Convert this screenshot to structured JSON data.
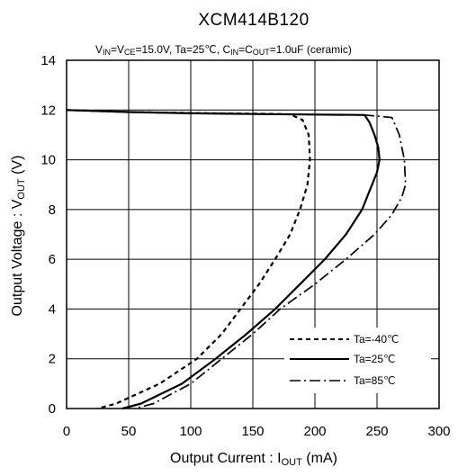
{
  "chart_data": {
    "type": "line",
    "title": "XCM414B120",
    "subtitle": {
      "vin": "V",
      "vin_sub": "IN",
      "eq1": "=V",
      "vce_sub": "CE",
      "mid": "=15.0V, Ta=25℃, C",
      "cin_sub": "IN",
      "eq2": "=C",
      "cout_sub": "OUT",
      "tail": "=1.0uF (ceramic)"
    },
    "xlabel": {
      "prefix": "Output  Current : I",
      "sub": "OUT",
      "suffix": "  (mA)"
    },
    "ylabel": {
      "prefix": "Output  Voltage : V",
      "sub": "OUT",
      "suffix": "  (V)"
    },
    "xlim": [
      0,
      300
    ],
    "ylim": [
      0,
      14
    ],
    "xticks": [
      "0",
      "50",
      "100",
      "150",
      "200",
      "250",
      "300"
    ],
    "yticks": [
      "0",
      "2",
      "4",
      "6",
      "8",
      "10",
      "12",
      "14"
    ],
    "grid": true,
    "legend_position": "bottom-right",
    "series": [
      {
        "name": "Ta=-40℃",
        "style": "dashed",
        "color": "#000000",
        "points": [
          [
            0,
            12.0
          ],
          [
            50,
            11.92
          ],
          [
            100,
            11.88
          ],
          [
            150,
            11.85
          ],
          [
            180,
            11.83
          ],
          [
            190,
            11.6
          ],
          [
            195,
            11.0
          ],
          [
            196,
            10.0
          ],
          [
            194,
            9.0
          ],
          [
            188,
            8.0
          ],
          [
            180,
            7.0
          ],
          [
            168,
            6.0
          ],
          [
            155,
            5.0
          ],
          [
            140,
            4.0
          ],
          [
            125,
            3.0
          ],
          [
            105,
            2.0
          ],
          [
            75,
            1.0
          ],
          [
            40,
            0.2
          ],
          [
            25,
            0
          ]
        ]
      },
      {
        "name": "Ta=25℃",
        "style": "solid",
        "color": "#000000",
        "points": [
          [
            0,
            12.0
          ],
          [
            50,
            11.92
          ],
          [
            100,
            11.87
          ],
          [
            150,
            11.84
          ],
          [
            200,
            11.82
          ],
          [
            240,
            11.8
          ],
          [
            244,
            11.5
          ],
          [
            248,
            11.0
          ],
          [
            251,
            10.5
          ],
          [
            252,
            10.0
          ],
          [
            250,
            9.5
          ],
          [
            246,
            9.0
          ],
          [
            238,
            8.0
          ],
          [
            225,
            7.0
          ],
          [
            208,
            6.0
          ],
          [
            188,
            5.0
          ],
          [
            168,
            4.0
          ],
          [
            145,
            3.0
          ],
          [
            120,
            2.0
          ],
          [
            93,
            1.0
          ],
          [
            60,
            0.2
          ],
          [
            45,
            0
          ]
        ]
      },
      {
        "name": "Ta=85℃",
        "style": "dashdot",
        "color": "#000000",
        "points": [
          [
            0,
            12.0
          ],
          [
            50,
            11.92
          ],
          [
            100,
            11.87
          ],
          [
            150,
            11.84
          ],
          [
            200,
            11.82
          ],
          [
            240,
            11.8
          ],
          [
            262,
            11.7
          ],
          [
            268,
            11.0
          ],
          [
            272,
            10.0
          ],
          [
            273,
            9.0
          ],
          [
            270,
            8.5
          ],
          [
            262,
            7.8
          ],
          [
            248,
            7.0
          ],
          [
            225,
            6.0
          ],
          [
            200,
            5.0
          ],
          [
            172,
            4.0
          ],
          [
            150,
            3.0
          ],
          [
            125,
            2.0
          ],
          [
            100,
            1.0
          ],
          [
            70,
            0.2
          ],
          [
            55,
            0
          ]
        ]
      }
    ]
  }
}
